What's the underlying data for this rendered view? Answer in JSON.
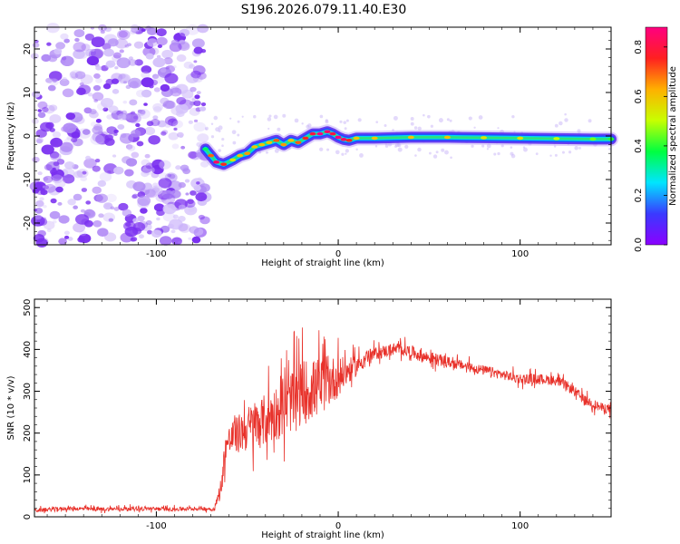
{
  "title": "S196.2026.079.11.40.E30",
  "colors": {
    "snr_line": "#e8312a",
    "noise_purple": "#7b2fe0",
    "colorbar_stops": [
      "#8b00ff",
      "#3a3aff",
      "#00e5ff",
      "#00ff40",
      "#c8ff00",
      "#ffb000",
      "#ff2020",
      "#ff0080"
    ]
  },
  "chart_data": [
    {
      "type": "heatmap",
      "name": "spectrogram",
      "xlabel": "Height of straight line (km)",
      "ylabel": "Frequency (Hz)",
      "xlim": [
        -167,
        150
      ],
      "ylim": [
        -25,
        25
      ],
      "xticks": [
        -100,
        0,
        100
      ],
      "xtick_labels": [
        "-100",
        "0",
        "100"
      ],
      "yticks": [
        -20,
        -10,
        0,
        10,
        20
      ],
      "ytick_labels": [
        "-20",
        "-10",
        "0",
        "10",
        "20"
      ],
      "noise_region_x": [
        -167,
        -73
      ],
      "ridge": {
        "x": [
          -73,
          -70,
          -67,
          -63,
          -58,
          -54,
          -50,
          -46,
          -42,
          -38,
          -34,
          -30,
          -26,
          -22,
          -18,
          -14,
          -10,
          -6,
          -3,
          0,
          3,
          6,
          10,
          20,
          40,
          60,
          80,
          100,
          120,
          140,
          150
        ],
        "y": [
          -3,
          -4.5,
          -6,
          -6.5,
          -5.5,
          -4.5,
          -4,
          -2.5,
          -2,
          -1.5,
          -1,
          -2,
          -1,
          -1.5,
          -0.5,
          0.5,
          0.5,
          1,
          0.5,
          -0.3,
          -0.8,
          -1,
          -0.5,
          -0.5,
          -0.3,
          -0.3,
          -0.4,
          -0.5,
          -0.6,
          -0.7,
          -0.7
        ],
        "amplitude": [
          0.35,
          0.7,
          0.85,
          0.75,
          0.55,
          0.6,
          0.65,
          0.6,
          0.6,
          0.6,
          0.7,
          0.65,
          0.6,
          0.7,
          0.75,
          0.8,
          0.9,
          0.85,
          0.8,
          0.9,
          0.85,
          0.75,
          0.6,
          0.6,
          0.6,
          0.6,
          0.55,
          0.55,
          0.5,
          0.45,
          0.4
        ]
      },
      "colorbar": {
        "label": "Normalized spectral amplitude",
        "range": [
          0,
          0.88
        ],
        "ticks": [
          0,
          0.2,
          0.4,
          0.6,
          0.8
        ],
        "tick_labels": [
          "0.0",
          "0.2",
          "0.4",
          "0.6",
          "0.8"
        ]
      }
    },
    {
      "type": "line",
      "name": "snr",
      "xlabel": "Height of straight line (km)",
      "ylabel": "SNR (10 * v/v)",
      "xlim": [
        -167,
        150
      ],
      "ylim": [
        0,
        520
      ],
      "xticks": [
        -100,
        0,
        100
      ],
      "xtick_labels": [
        "-100",
        "0",
        "100"
      ],
      "yticks": [
        0,
        100,
        200,
        300,
        400,
        500
      ],
      "ytick_labels": [
        "0",
        "100",
        "200",
        "300",
        "400",
        "500"
      ],
      "series": [
        {
          "name": "SNR",
          "x": [
            -167,
            -150,
            -130,
            -110,
            -90,
            -75,
            -68,
            -64,
            -62,
            -58,
            -54,
            -50,
            -46,
            -42,
            -38,
            -34,
            -30,
            -26,
            -22,
            -18,
            -14,
            -10,
            -6,
            -2,
            2,
            6,
            10,
            15,
            20,
            25,
            30,
            35,
            40,
            45,
            50,
            55,
            60,
            70,
            80,
            90,
            100,
            110,
            120,
            125,
            130,
            135,
            140,
            145,
            150
          ],
          "y": [
            15,
            20,
            18,
            20,
            18,
            20,
            18,
            80,
            170,
            190,
            200,
            210,
            220,
            225,
            240,
            250,
            260,
            275,
            290,
            300,
            305,
            310,
            320,
            330,
            340,
            350,
            360,
            380,
            390,
            395,
            400,
            400,
            395,
            385,
            380,
            375,
            370,
            360,
            350,
            340,
            330,
            330,
            325,
            315,
            300,
            280,
            270,
            260,
            258
          ],
          "spread": [
            8,
            8,
            8,
            8,
            8,
            8,
            8,
            40,
            60,
            70,
            80,
            90,
            100,
            100,
            110,
            110,
            120,
            120,
            130,
            130,
            120,
            120,
            100,
            90,
            70,
            50,
            40,
            30,
            25,
            25,
            25,
            25,
            25,
            25,
            25,
            25,
            20,
            20,
            20,
            20,
            20,
            20,
            20,
            20,
            20,
            20,
            20,
            20,
            20
          ]
        }
      ]
    }
  ]
}
